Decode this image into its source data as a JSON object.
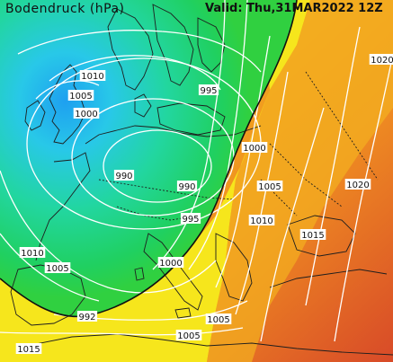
{
  "map": {
    "title": "Bodendruck (hPa)",
    "valid": "Valid: Thu,31MAR2022 12Z",
    "colors": {
      "cyan": "#28c8e8",
      "green": "#20d060",
      "yellow": "#f4e81c",
      "orange": "#f4a01c",
      "red": "#dc5a28",
      "isobar": "#ffffff",
      "coastline": "#1e1e1e"
    },
    "isobar_labels": [
      {
        "text": "1010"
      },
      {
        "text": "1005"
      },
      {
        "text": "1000"
      },
      {
        "text": "995"
      },
      {
        "text": "990"
      },
      {
        "text": "990"
      },
      {
        "text": "995"
      },
      {
        "text": "1000"
      },
      {
        "text": "1005"
      },
      {
        "text": "1010"
      },
      {
        "text": "1015"
      },
      {
        "text": "1020"
      },
      {
        "text": "1020"
      },
      {
        "text": "1010"
      },
      {
        "text": "1005"
      },
      {
        "text": "1000"
      },
      {
        "text": "992"
      },
      {
        "text": "1005"
      },
      {
        "text": "1005"
      },
      {
        "text": "1015"
      }
    ]
  }
}
